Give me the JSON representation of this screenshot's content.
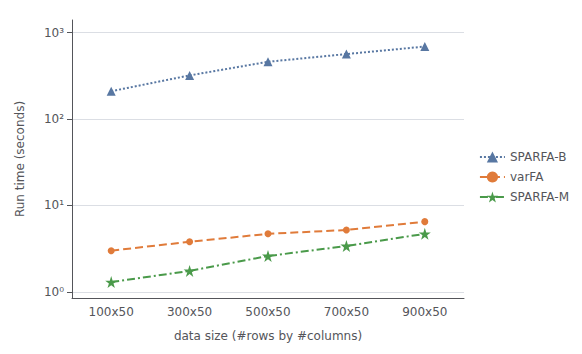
{
  "chart_data": {
    "type": "line",
    "categories": [
      "100x50",
      "300x50",
      "500x50",
      "700x50",
      "900x50"
    ],
    "series": [
      {
        "name": "SPARFA-B",
        "color": "#5877a2",
        "marker": "triangle",
        "line_style": "dotted",
        "values": [
          210,
          320,
          460,
          565,
          690
        ]
      },
      {
        "name": "varFA",
        "color": "#e07b3a",
        "marker": "circle",
        "line_style": "dashed",
        "values": [
          3.0,
          3.8,
          4.7,
          5.2,
          6.5
        ]
      },
      {
        "name": "SPARFA-M",
        "color": "#4a9a4a",
        "marker": "star",
        "line_style": "dashdot",
        "values": [
          1.3,
          1.75,
          2.6,
          3.4,
          4.7
        ]
      }
    ],
    "xlabel": "data size (#rows by #columns)",
    "ylabel": "Run time (seconds)",
    "log": "y",
    "ylim": [
      0.85,
      1400
    ],
    "yticks": [
      {
        "value": 1,
        "label": "10⁰"
      },
      {
        "value": 10,
        "label": "10¹"
      },
      {
        "value": 100,
        "label": "10²"
      },
      {
        "value": 1000,
        "label": "10³"
      }
    ],
    "grid": true,
    "legend": "right"
  }
}
